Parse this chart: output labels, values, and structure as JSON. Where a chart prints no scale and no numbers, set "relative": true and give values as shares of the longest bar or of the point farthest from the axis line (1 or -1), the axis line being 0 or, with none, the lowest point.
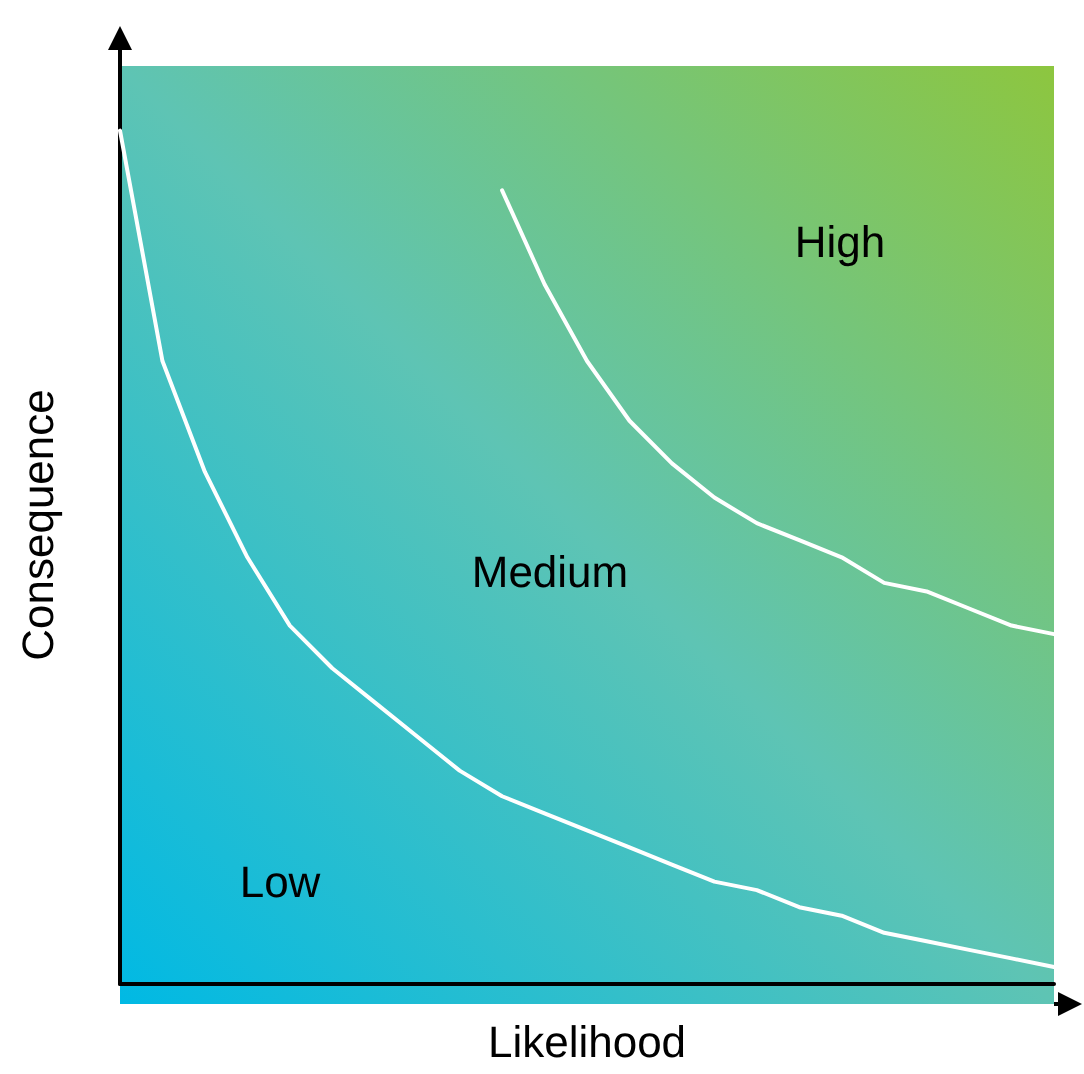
{
  "chart_data": {
    "type": "line",
    "relative": true,
    "xlabel": "Likelihood",
    "ylabel": "Consequence",
    "categories": [
      null,
      null,
      null,
      null,
      null,
      null,
      null,
      null,
      null,
      null,
      null,
      null,
      null,
      null,
      null,
      null,
      null,
      null,
      null,
      null,
      null,
      null,
      null
    ],
    "series": [
      {
        "color": "#ffffff",
        "values": [
          1,
          0.73,
          0.6,
          0.5,
          0.42,
          0.37,
          0.33,
          0.29,
          0.25,
          0.22,
          0.2,
          0.18,
          0.16,
          0.14,
          0.12,
          0.11,
          0.09,
          0.08,
          0.06,
          0.05,
          0.04,
          0.03,
          0.02
        ]
      },
      {
        "color": "#ffffff",
        "values": [
          null,
          null,
          null,
          null,
          null,
          null,
          null,
          null,
          null,
          0.93,
          0.82,
          0.73,
          0.66,
          0.61,
          0.57,
          0.54,
          0.52,
          0.5,
          0.47,
          0.46,
          0.44,
          0.42,
          0.41
        ]
      }
    ],
    "annotations": [
      "Low",
      "Medium",
      "High"
    ],
    "grid": false,
    "marker": "none",
    "line_style": "solid"
  }
}
